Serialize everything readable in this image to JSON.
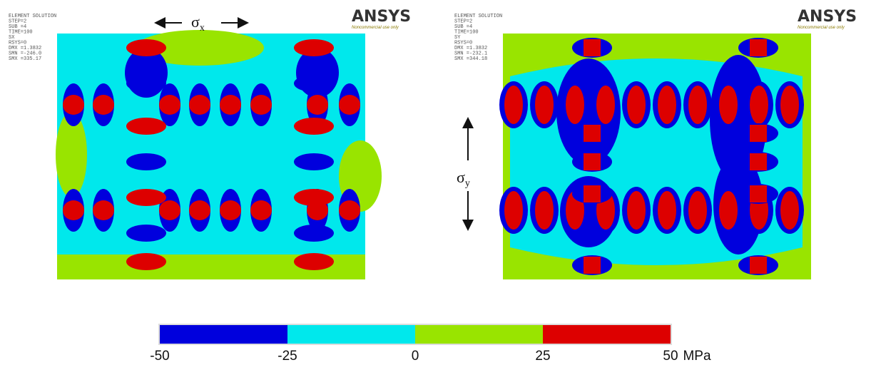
{
  "plots": [
    {
      "header": [
        "ELEMENT SOLUTION",
        "STEP=2",
        "SUB =4",
        "TIME=100",
        "SX",
        "RSYS=0",
        "DMX =1.3832",
        "SMN =-246.0",
        "SMX =335.17"
      ],
      "logo": "ANSYS",
      "logo_note": "Noncommercial use only",
      "stress_label": {
        "symbol": "σ",
        "subscript": "x"
      }
    },
    {
      "header": [
        "ELEMENT SOLUTION",
        "STEP=2",
        "SUB =4",
        "TIME=100",
        "SY",
        "RSYS=0",
        "DMX =1.3832",
        "SMN =-232.1",
        "SMX =344.18"
      ],
      "logo": "ANSYS",
      "logo_note": "Noncommercial use only",
      "stress_label": {
        "symbol": "σ",
        "subscript": "y"
      }
    }
  ],
  "colorbar": {
    "ticks": [
      -50,
      -25,
      0,
      25,
      50
    ],
    "unit": "MPa",
    "colors": [
      "#0000dd",
      "#00e8ec",
      "#99e400",
      "#dd0000"
    ]
  }
}
